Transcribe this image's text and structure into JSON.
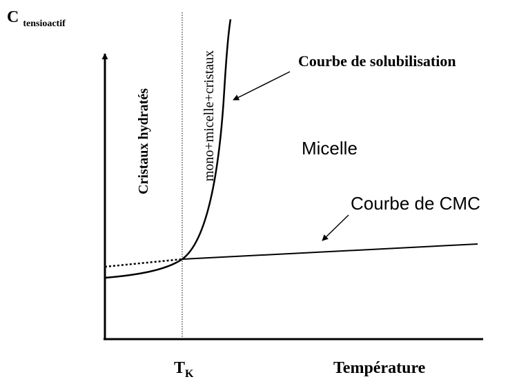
{
  "axes": {
    "y_label": "C",
    "y_label_sub": "tensioactif",
    "x_label": "Température",
    "x_mark": "T",
    "x_mark_sub": "K"
  },
  "regions": {
    "left": "Cristaux hydratés",
    "middle": "mono+micelle+cristaux",
    "right": "Micelle"
  },
  "curves": {
    "solubility": "Courbe de solubilisation",
    "cmc": "Courbe de CMC"
  }
}
